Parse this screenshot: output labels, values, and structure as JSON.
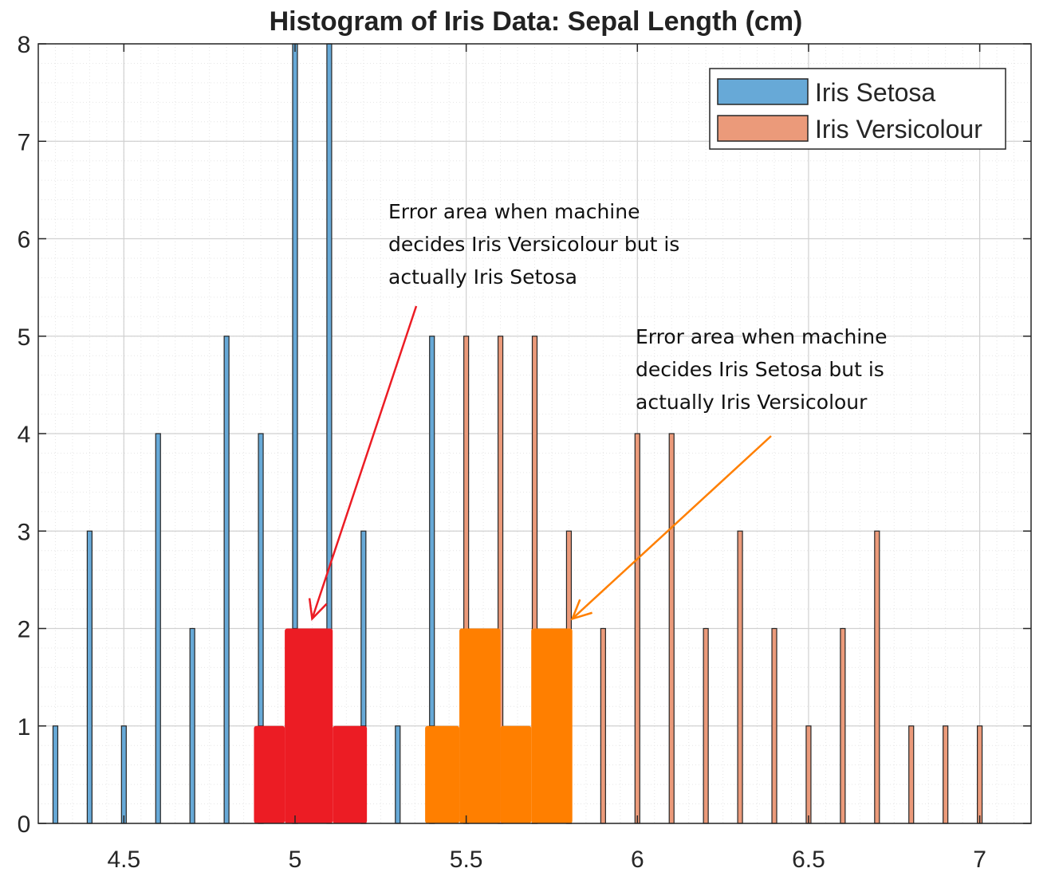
{
  "chart_data": {
    "type": "bar",
    "title": "Histogram of Iris Data: Sepal Length (cm)",
    "xlabel": "",
    "ylabel": "",
    "xlim": [
      4.25,
      7.15
    ],
    "ylim": [
      0,
      8
    ],
    "xticks": [
      "4.5",
      "5",
      "5.5",
      "6",
      "6.5",
      "7"
    ],
    "xtick_values": [
      4.5,
      5,
      5.5,
      6,
      6.5,
      7
    ],
    "yticks": [
      "0",
      "1",
      "2",
      "3",
      "4",
      "5",
      "6",
      "7",
      "8"
    ],
    "grid": "major and minor",
    "legend_position": "top-right",
    "series": [
      {
        "name": "Iris Setosa",
        "color": "#67a9d7",
        "x": [
          4.3,
          4.4,
          4.5,
          4.6,
          4.7,
          4.8,
          4.9,
          5.0,
          5.1,
          5.2,
          5.3,
          5.4,
          5.5,
          5.7,
          5.8
        ],
        "values": [
          1,
          3,
          1,
          4,
          2,
          5,
          4,
          8,
          8,
          3,
          1,
          5,
          2,
          2,
          1
        ]
      },
      {
        "name": "Iris Versicolour",
        "color": "#eb9a7a",
        "x": [
          4.9,
          5.0,
          5.2,
          5.4,
          5.5,
          5.6,
          5.7,
          5.8,
          5.9,
          6.0,
          6.1,
          6.2,
          6.3,
          6.4,
          6.5,
          6.6,
          6.7,
          6.8,
          6.9,
          7.0
        ],
        "values": [
          1,
          2,
          1,
          1,
          5,
          5,
          5,
          3,
          2,
          4,
          4,
          2,
          3,
          2,
          1,
          2,
          3,
          1,
          1,
          1
        ]
      }
    ],
    "highlight_regions": [
      {
        "color": "#ec1c24",
        "steps": [
          {
            "x0": 4.88,
            "x1": 4.97,
            "value": 1
          },
          {
            "x0": 4.97,
            "x1": 5.11,
            "value": 2
          },
          {
            "x0": 5.11,
            "x1": 5.21,
            "value": 1
          }
        ]
      },
      {
        "color": "#ff7f00",
        "steps": [
          {
            "x0": 5.38,
            "x1": 5.48,
            "value": 1
          },
          {
            "x0": 5.48,
            "x1": 5.6,
            "value": 2
          },
          {
            "x0": 5.6,
            "x1": 5.69,
            "value": 1
          },
          {
            "x0": 5.69,
            "x1": 5.81,
            "value": 2
          }
        ]
      }
    ],
    "annotations": [
      {
        "lines": [
          "Error area when machine",
          "decides Iris Versicolour but is",
          "actually Iris Setosa"
        ],
        "color": "#ec1c24",
        "arrow_tip": {
          "x": 5.05,
          "y": 2.1
        }
      },
      {
        "lines": [
          "Error area when machine",
          "decides Iris Setosa but is",
          "actually Iris Versicolour"
        ],
        "color": "#ff7f00",
        "arrow_tip": {
          "x": 5.81,
          "y": 2.1
        }
      }
    ]
  }
}
